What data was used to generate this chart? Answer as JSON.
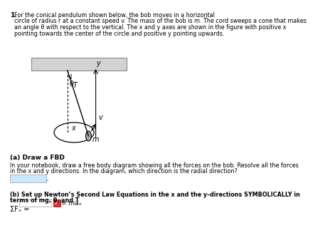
{
  "background_color": "#f5f5f5",
  "title_number": "1.",
  "title_text": "For the conical pendulum shown below, the bob moves in a horizontal\ncircle of radius r at a constant speed v. The mass of the bob is m. The cord sweeps a cone that makes\nan angle θ with respect to the vertical. The x and y axes are shown in the figure with positive x\npointing towards the center of the circle and positive y pointing upwards.",
  "section_a_title": "(a) Draw a FBD",
  "section_a_text": "In your notebook, draw a free body diagram showing all the forces on the bob. Resolve all the forces\nin the x and y directions. In the diagram, which direction is the radial direction?",
  "section_b_title": "(b) Set up Newton’s Second Law Equations in the x and the y–directions SYMBOLICALLY in\nterms of mg, θ, and T",
  "sum_fx_label": "ΣFₓ =",
  "equals_max": "= maₓ",
  "diagram_bg": "#d3d3d3",
  "input_box_color": "#cce8ff",
  "submit_box_color": "#cc3333",
  "page_bg": "#ffffff"
}
